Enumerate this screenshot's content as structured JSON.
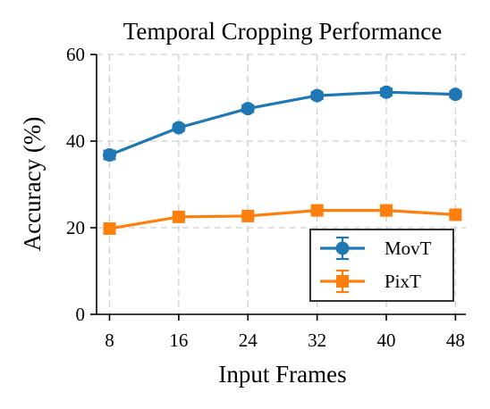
{
  "chart_data": {
    "type": "line",
    "title": "Temporal Cropping Performance",
    "xlabel": "Input Frames",
    "ylabel": "Accuracy (%)",
    "x": [
      8,
      16,
      24,
      32,
      40,
      48
    ],
    "xticks": [
      "8",
      "16",
      "24",
      "32",
      "40",
      "48"
    ],
    "yticks": [
      "0",
      "20",
      "40",
      "60"
    ],
    "ylim": [
      0,
      60
    ],
    "grid": true,
    "legend_position": "lower-right",
    "series": [
      {
        "name": "MovT",
        "color": "#1f77b4",
        "marker": "circle",
        "values": [
          36.8,
          43.1,
          47.5,
          50.5,
          51.3,
          50.8
        ],
        "error": [
          1.0,
          0.7,
          0.8,
          0.8,
          0.8,
          0.7
        ]
      },
      {
        "name": "PixT",
        "color": "#ff7f0e",
        "marker": "square",
        "values": [
          19.8,
          22.5,
          22.7,
          24.0,
          24.0,
          23.0
        ],
        "error": [
          0.6,
          0.5,
          0.5,
          0.6,
          0.6,
          0.5
        ]
      }
    ]
  }
}
